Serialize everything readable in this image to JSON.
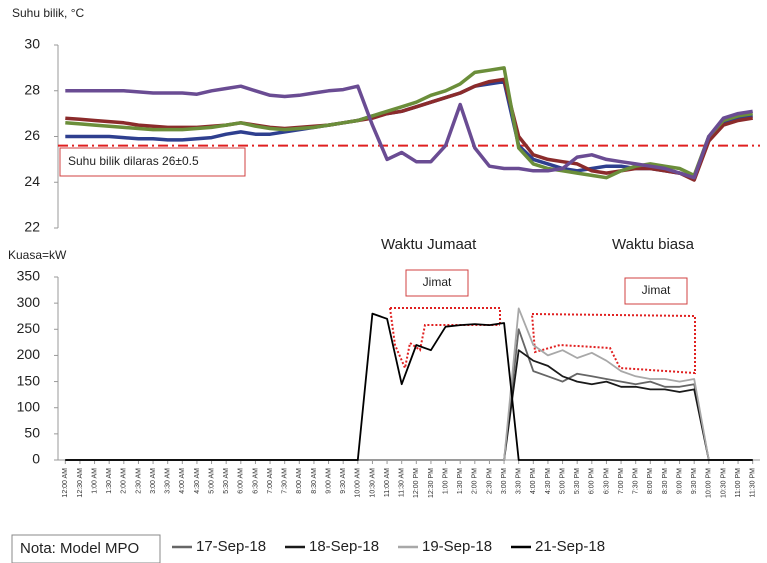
{
  "chart_data": [
    {
      "type": "line",
      "ylabel": "Suhu bilik, °C",
      "ylim": [
        22,
        30
      ],
      "yticks": [
        22,
        24,
        26,
        28,
        30
      ],
      "reference_line": 25.6,
      "reference_color": "#e02020",
      "annotations": [
        "Suhu bilik dilaras 26±0.5"
      ],
      "series": [
        {
          "color": "#2e3f8f",
          "values": [
            26,
            26,
            26,
            26,
            25.95,
            25.9,
            25.9,
            25.85,
            25.85,
            25.9,
            25.95,
            26.1,
            26.2,
            26.1,
            26.1,
            26.2,
            26.3,
            26.4,
            26.5,
            26.6,
            26.7,
            26.9,
            27,
            27.1,
            27.3,
            27.5,
            27.7,
            27.9,
            28.2,
            28.3,
            28.4,
            25.6,
            25,
            24.8,
            24.6,
            24.5,
            24.6,
            24.7,
            24.7,
            24.6,
            24.6,
            24.5,
            24.4,
            24.2,
            26,
            26.6,
            26.8,
            26.9
          ]
        },
        {
          "color": "#8b2b2b",
          "values": [
            26.8,
            26.75,
            26.7,
            26.65,
            26.6,
            26.5,
            26.45,
            26.4,
            26.4,
            26.4,
            26.45,
            26.5,
            26.6,
            26.5,
            26.4,
            26.35,
            26.4,
            26.45,
            26.5,
            26.6,
            26.7,
            26.8,
            27,
            27.1,
            27.3,
            27.5,
            27.7,
            27.9,
            28.2,
            28.4,
            28.5,
            26,
            25.2,
            25,
            24.9,
            24.8,
            24.5,
            24.4,
            24.5,
            24.6,
            24.6,
            24.5,
            24.4,
            24.1,
            25.8,
            26.5,
            26.7,
            26.8
          ]
        },
        {
          "color": "#6b8e3a",
          "values": [
            26.6,
            26.55,
            26.5,
            26.45,
            26.4,
            26.35,
            26.3,
            26.3,
            26.3,
            26.35,
            26.4,
            26.5,
            26.6,
            26.45,
            26.35,
            26.3,
            26.35,
            26.4,
            26.5,
            26.6,
            26.7,
            26.9,
            27.1,
            27.3,
            27.5,
            27.8,
            28,
            28.3,
            28.8,
            28.9,
            29,
            25.5,
            24.8,
            24.6,
            24.5,
            24.4,
            24.3,
            24.2,
            24.5,
            24.7,
            24.8,
            24.7,
            24.6,
            24.3,
            26,
            26.7,
            26.9,
            27
          ]
        },
        {
          "color": "#6a4c93",
          "values": [
            28,
            28,
            28,
            28,
            28,
            27.95,
            27.9,
            27.9,
            27.9,
            27.85,
            28,
            28.1,
            28.2,
            28,
            27.8,
            27.75,
            27.8,
            27.9,
            28,
            28.05,
            28.2,
            26.5,
            25,
            25.3,
            24.9,
            24.9,
            25.6,
            27.4,
            25.5,
            24.7,
            24.6,
            24.6,
            24.5,
            24.5,
            24.6,
            25.1,
            25.2,
            25,
            24.9,
            24.8,
            24.7,
            24.6,
            24.4,
            24.2,
            26,
            26.8,
            27,
            27.1
          ]
        }
      ]
    },
    {
      "type": "line",
      "ylabel": "Kuasa=kW",
      "ylim": [
        0,
        350
      ],
      "yticks": [
        0,
        50,
        100,
        150,
        200,
        250,
        300,
        350
      ],
      "annotations": [
        "Waktu Jumaat",
        "Waktu biasa",
        "Jimat",
        "Jimat"
      ],
      "note": "Nota: Model MPO",
      "categories": [
        "12:00 AM",
        "12:30 AM",
        "1:00 AM",
        "1:30 AM",
        "2:00 AM",
        "2:30 AM",
        "3:00 AM",
        "3:30 AM",
        "4:00 AM",
        "4:30 AM",
        "5:00 AM",
        "5:30 AM",
        "6:00 AM",
        "6:30 AM",
        "7:00 AM",
        "7:30 AM",
        "8:00 AM",
        "8:30 AM",
        "9:00 AM",
        "9:30 AM",
        "10:00 AM",
        "10:30 AM",
        "11:00 AM",
        "11:30 AM",
        "12:00 PM",
        "12:30 PM",
        "1:00 PM",
        "1:30 PM",
        "2:00 PM",
        "2:30 PM",
        "3:00 PM",
        "3:30 PM",
        "4:00 PM",
        "4:30 PM",
        "5:00 PM",
        "5:30 PM",
        "6:00 PM",
        "6:30 PM",
        "7:00 PM",
        "7:30 PM",
        "8:00 PM",
        "8:30 PM",
        "9:00 PM",
        "9:30 PM",
        "10:00 PM",
        "10:30 PM",
        "11:00 PM",
        "11:30 PM"
      ],
      "series": [
        {
          "name": "17-Sep-18",
          "color": "#666666",
          "values": [
            0,
            0,
            0,
            0,
            0,
            0,
            0,
            0,
            0,
            0,
            0,
            0,
            0,
            0,
            0,
            0,
            0,
            0,
            0,
            0,
            0,
            0,
            0,
            0,
            0,
            0,
            0,
            0,
            0,
            0,
            0,
            250,
            170,
            160,
            150,
            165,
            160,
            155,
            150,
            145,
            150,
            140,
            140,
            145,
            0,
            0,
            0,
            0
          ]
        },
        {
          "name": "18-Sep-18",
          "color": "#1a1a1a",
          "values": [
            0,
            0,
            0,
            0,
            0,
            0,
            0,
            0,
            0,
            0,
            0,
            0,
            0,
            0,
            0,
            0,
            0,
            0,
            0,
            0,
            0,
            0,
            0,
            0,
            0,
            0,
            0,
            0,
            0,
            0,
            0,
            210,
            190,
            180,
            160,
            150,
            145,
            150,
            140,
            140,
            135,
            135,
            130,
            135,
            0,
            0,
            0,
            0
          ]
        },
        {
          "name": "19-Sep-18",
          "color": "#a8a8a8",
          "values": [
            0,
            0,
            0,
            0,
            0,
            0,
            0,
            0,
            0,
            0,
            0,
            0,
            0,
            0,
            0,
            0,
            0,
            0,
            0,
            0,
            0,
            0,
            0,
            0,
            0,
            0,
            0,
            0,
            0,
            0,
            0,
            290,
            220,
            200,
            210,
            195,
            205,
            190,
            170,
            160,
            155,
            155,
            150,
            155,
            0,
            0,
            0,
            0
          ]
        },
        {
          "name": "21-Sep-18",
          "color": "#000000",
          "values": [
            0,
            0,
            0,
            0,
            0,
            0,
            0,
            0,
            0,
            0,
            0,
            0,
            0,
            0,
            0,
            0,
            0,
            0,
            0,
            0,
            0,
            280,
            270,
            145,
            220,
            210,
            255,
            258,
            260,
            258,
            262,
            0,
            0,
            0,
            0,
            0,
            0,
            0,
            0,
            0,
            0,
            0,
            0,
            0,
            0,
            0,
            0,
            0
          ]
        }
      ]
    }
  ]
}
